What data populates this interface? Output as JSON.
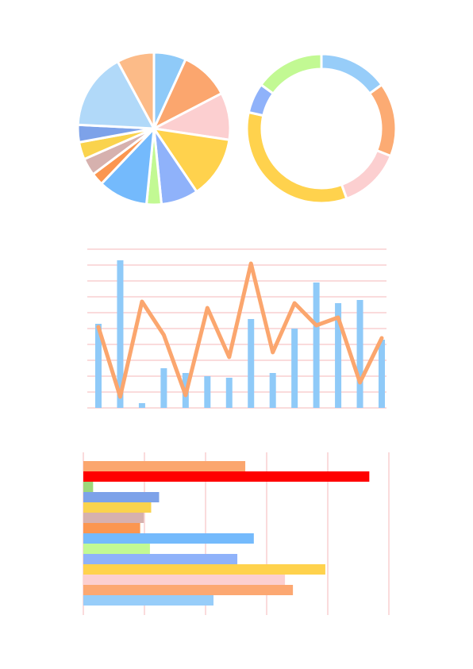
{
  "chart_data": [
    {
      "type": "pie",
      "title": "",
      "values": [
        6.5,
        10,
        9.5,
        12.5,
        7.5,
        3,
        10,
        2.5,
        3.5,
        3.5,
        3.5,
        15.5,
        7.5
      ],
      "colors": [
        "#8fcaf8",
        "#fba66e",
        "#fccfd0",
        "#ffd24d",
        "#8fb2fa",
        "#c2f993",
        "#74bafc",
        "#fb9650",
        "#d6b1ae",
        "#fad34d",
        "#7da2e9",
        "#b1d9f9",
        "#fcbb88"
      ]
    },
    {
      "type": "pie",
      "subtype": "donut",
      "title": "",
      "values": [
        15,
        16,
        13.5,
        34,
        6.5,
        15
      ],
      "colors": [
        "#97cdf9",
        "#fcab73",
        "#fccfd0",
        "#ffd24d",
        "#8fb2fa",
        "#c2f993"
      ]
    },
    {
      "type": "bar+line",
      "title": "",
      "xlabel": "",
      "ylabel": "",
      "ylim": [
        0,
        10
      ],
      "grid": true,
      "bar_values": [
        5.3,
        9.3,
        0.3,
        2.5,
        2.2,
        2.0,
        1.9,
        5.6,
        2.2,
        5.0,
        7.9,
        6.6,
        6.8,
        4.3
      ],
      "line_values": [
        5.1,
        0.7,
        6.7,
        4.6,
        0.8,
        6.3,
        3.2,
        9.1,
        3.5,
        6.6,
        5.2,
        5.7,
        1.6,
        4.4
      ],
      "bar_color": "#8fcaf8",
      "line_color": "#fba66e",
      "grid_color": "#f9cfd1"
    },
    {
      "type": "bar",
      "orientation": "horizontal",
      "title": "",
      "xlim": [
        0,
        5
      ],
      "grid": true,
      "values": [
        2.65,
        4.68,
        0.16,
        1.24,
        1.11,
        0.99,
        0.93,
        2.79,
        1.09,
        2.52,
        3.96,
        3.3,
        3.43,
        2.13
      ],
      "colors": [
        "#fba66e",
        "#ff0000",
        "#9cd77a",
        "#7da2e9",
        "#fad34d",
        "#d6b1ae",
        "#fb9650",
        "#74bafc",
        "#c2f993",
        "#8fb2fa",
        "#ffd24d",
        "#fccfd0",
        "#fca872",
        "#97cdf9"
      ],
      "grid_color": "#f9cfd1"
    }
  ]
}
